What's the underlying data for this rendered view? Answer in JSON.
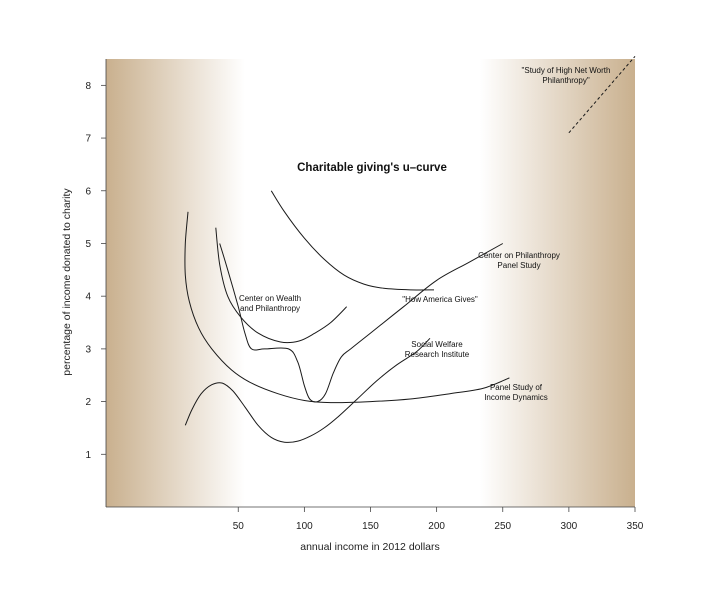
{
  "chart_data": {
    "type": "line",
    "title": "Charitable giving's u–curve",
    "xlabel": "annual income in 2012 dollars",
    "ylabel": "percentage of income donated to charity",
    "xlim": [
      -50,
      350
    ],
    "ylim": [
      0,
      8.5
    ],
    "x_ticks": [
      "50",
      "100",
      "150",
      "200",
      "250",
      "300",
      "350"
    ],
    "y_ticks": [
      "1",
      "2",
      "3",
      "4",
      "5",
      "6",
      "7",
      "8"
    ],
    "grid": false,
    "background_gradient_colors": [
      "#c9b08e",
      "#ffffff"
    ],
    "series": [
      {
        "name": "Center on Wealth and Philanthropy",
        "label": [
          "Center on Wealth",
          "and Philanthropy"
        ],
        "style": "solid",
        "points": [
          [
            33,
            5.3
          ],
          [
            36,
            4.6
          ],
          [
            42,
            4.0
          ],
          [
            52,
            3.6
          ],
          [
            65,
            3.3
          ],
          [
            82,
            3.13
          ],
          [
            96,
            3.15
          ],
          [
            108,
            3.3
          ],
          [
            120,
            3.5
          ],
          [
            132,
            3.8
          ]
        ]
      },
      {
        "name": "Center on Philanthropy Panel Study",
        "label": [
          "Center on Philanthropy",
          "Panel Study"
        ],
        "style": "solid",
        "points": [
          [
            36,
            5.0
          ],
          [
            42,
            4.5
          ],
          [
            50,
            3.8
          ],
          [
            55,
            3.3
          ],
          [
            60,
            3.0
          ],
          [
            70,
            3.0
          ],
          [
            88,
            3.0
          ],
          [
            95,
            2.75
          ],
          [
            100,
            2.3
          ],
          [
            104,
            2.05
          ],
          [
            110,
            2.0
          ],
          [
            116,
            2.15
          ],
          [
            122,
            2.55
          ],
          [
            128,
            2.85
          ],
          [
            135,
            3.0
          ],
          [
            150,
            3.3
          ],
          [
            175,
            3.8
          ],
          [
            200,
            4.3
          ],
          [
            225,
            4.65
          ],
          [
            250,
            5.0
          ]
        ]
      },
      {
        "name": "\"How America Gives\"",
        "label": [
          "\"How America Gives\""
        ],
        "style": "solid",
        "points": [
          [
            75,
            6.0
          ],
          [
            85,
            5.6
          ],
          [
            100,
            5.1
          ],
          [
            115,
            4.7
          ],
          [
            130,
            4.4
          ],
          [
            145,
            4.23
          ],
          [
            160,
            4.15
          ],
          [
            180,
            4.12
          ],
          [
            198,
            4.12
          ]
        ]
      },
      {
        "name": "Social Welfare Research Institute",
        "label": [
          "Social Welfare",
          "Research Institute"
        ],
        "style": "solid",
        "points": [
          [
            10,
            1.55
          ],
          [
            15,
            1.85
          ],
          [
            22,
            2.15
          ],
          [
            30,
            2.32
          ],
          [
            38,
            2.35
          ],
          [
            46,
            2.2
          ],
          [
            55,
            1.9
          ],
          [
            65,
            1.55
          ],
          [
            75,
            1.32
          ],
          [
            85,
            1.23
          ],
          [
            95,
            1.25
          ],
          [
            105,
            1.35
          ],
          [
            115,
            1.5
          ],
          [
            125,
            1.7
          ],
          [
            140,
            2.05
          ],
          [
            155,
            2.4
          ],
          [
            170,
            2.7
          ],
          [
            185,
            2.95
          ],
          [
            195,
            3.2
          ]
        ]
      },
      {
        "name": "Panel Study of Income Dynamics",
        "label": [
          "Panel Study of",
          "Income Dynamics"
        ],
        "style": "solid",
        "points": [
          [
            12,
            5.6
          ],
          [
            10,
            5.0
          ],
          [
            10,
            4.4
          ],
          [
            13,
            3.9
          ],
          [
            20,
            3.4
          ],
          [
            30,
            3.0
          ],
          [
            45,
            2.6
          ],
          [
            60,
            2.35
          ],
          [
            80,
            2.15
          ],
          [
            100,
            2.02
          ],
          [
            120,
            1.98
          ],
          [
            150,
            2.0
          ],
          [
            180,
            2.05
          ],
          [
            210,
            2.15
          ],
          [
            235,
            2.25
          ],
          [
            255,
            2.45
          ]
        ]
      },
      {
        "name": "\"Study of High Net Worth Philanthropy\"",
        "label": [
          "\"Study of High Net Worth",
          "Philanthropy\""
        ],
        "style": "dashed",
        "points": [
          [
            300,
            7.1
          ],
          [
            350,
            8.55
          ]
        ]
      }
    ]
  }
}
